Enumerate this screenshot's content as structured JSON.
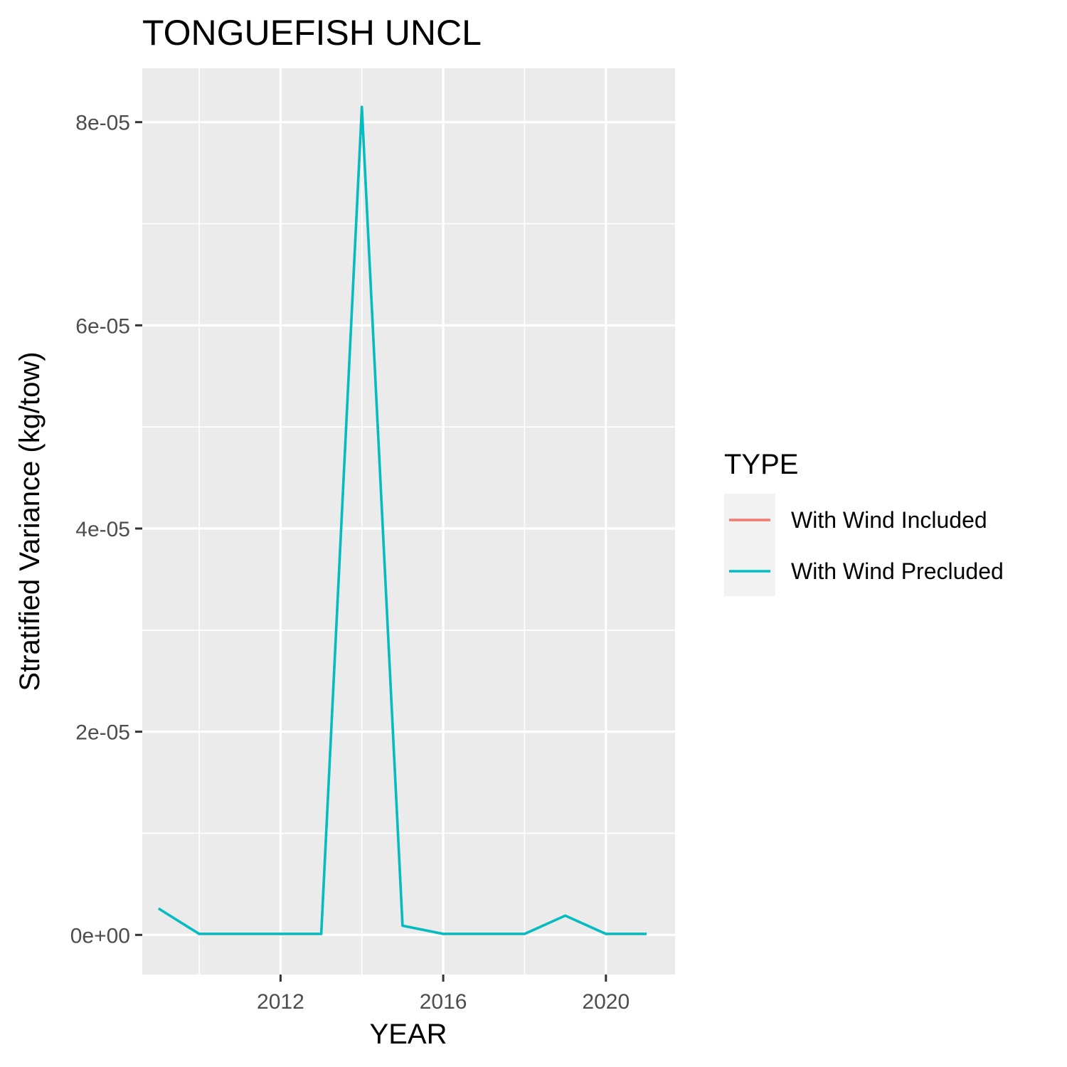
{
  "chart_data": {
    "type": "line",
    "title": "TONGUEFISH UNCL",
    "xlabel": "YEAR",
    "ylabel": "Stratified Variance (kg/tow)",
    "xlim": [
      2008.6,
      2021.7
    ],
    "ylim": [
      -3.9e-06,
      8.53e-05
    ],
    "x_ticks": [
      2012,
      2016,
      2020
    ],
    "x_tick_labels": [
      "2012",
      "2016",
      "2020"
    ],
    "x_minor_ticks": [
      2010,
      2014,
      2018
    ],
    "y_ticks": [
      0,
      2e-05,
      4e-05,
      6e-05,
      8e-05
    ],
    "y_tick_labels": [
      "0e+00",
      "2e-05",
      "4e-05",
      "6e-05",
      "8e-05"
    ],
    "y_minor_ticks": [
      1e-05,
      3e-05,
      5e-05,
      7e-05
    ],
    "grid": true,
    "legend_title": "TYPE",
    "legend_position": "right",
    "x": [
      2009,
      2010,
      2011,
      2012,
      2013,
      2014,
      2015,
      2016,
      2017,
      2018,
      2019,
      2020,
      2021
    ],
    "series": [
      {
        "name": "With Wind Included",
        "color": "#F8766D",
        "values": [
          2.6e-06,
          1e-07,
          1e-07,
          1e-07,
          1e-07,
          8.15e-05,
          9e-07,
          1e-07,
          1e-07,
          1e-07,
          1.9e-06,
          1e-07,
          1e-07
        ]
      },
      {
        "name": "With Wind Precluded",
        "color": "#00BFC4",
        "values": [
          2.6e-06,
          1e-07,
          1e-07,
          1e-07,
          1e-07,
          8.15e-05,
          9e-07,
          1e-07,
          1e-07,
          1e-07,
          1.9e-06,
          1e-07,
          1e-07
        ]
      }
    ]
  }
}
